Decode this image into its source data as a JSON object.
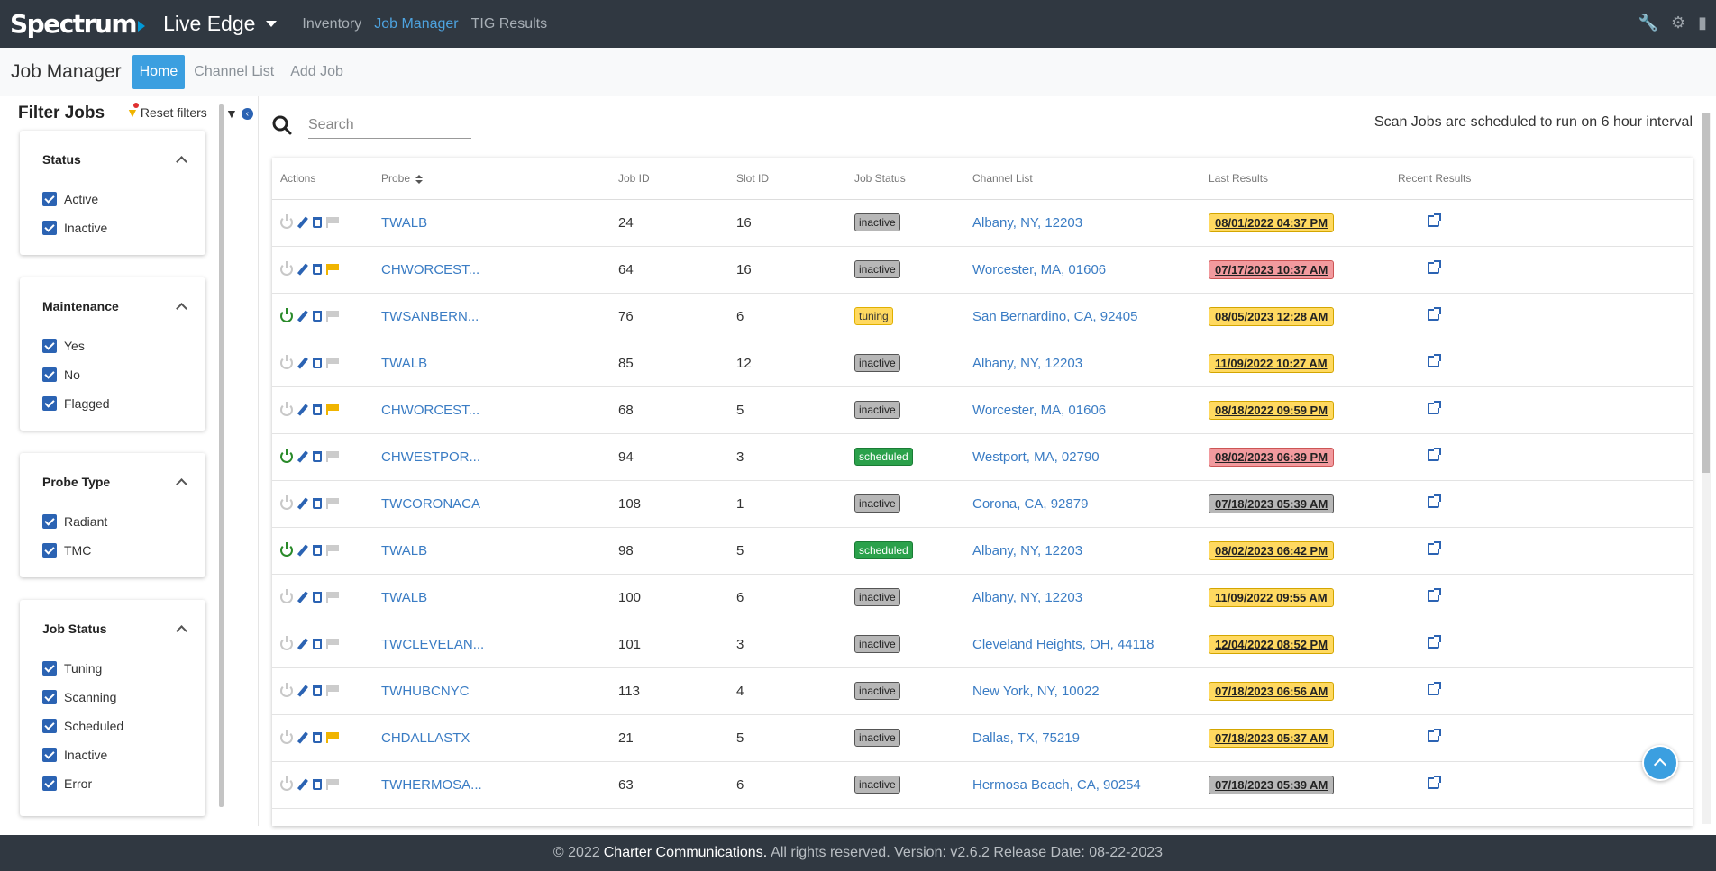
{
  "brand": "Spectrum",
  "app_switcher": "Live Edge",
  "nav": [
    {
      "label": "Inventory",
      "active": false
    },
    {
      "label": "Job Manager",
      "active": true
    },
    {
      "label": "TIG Results",
      "active": false
    }
  ],
  "top_icons": [
    "wrench-icon",
    "gear-icon",
    "book-icon"
  ],
  "page_title": "Job Manager",
  "subtabs": [
    {
      "label": "Home",
      "active": true
    },
    {
      "label": "Channel List",
      "active": false
    },
    {
      "label": "Add Job",
      "active": false
    }
  ],
  "filters": {
    "title": "Filter Jobs",
    "reset_label": "Reset filters",
    "groups": [
      {
        "title": "Status",
        "options": [
          "Active",
          "Inactive"
        ]
      },
      {
        "title": "Maintenance",
        "options": [
          "Yes",
          "No",
          "Flagged"
        ]
      },
      {
        "title": "Probe Type",
        "options": [
          "Radiant",
          "TMC"
        ]
      },
      {
        "title": "Job Status",
        "options": [
          "Tuning",
          "Scanning",
          "Scheduled",
          "Inactive",
          "Error"
        ]
      }
    ]
  },
  "search": {
    "placeholder": "Search",
    "value": ""
  },
  "scan_note": "Scan Jobs are scheduled to run on 6 hour interval",
  "table": {
    "headers": [
      "Actions",
      "Probe",
      "Job ID",
      "Slot ID",
      "Job Status",
      "Channel List",
      "Last Results",
      "Recent Results"
    ],
    "rows": [
      {
        "power": false,
        "flag": false,
        "probe": "TWALB",
        "job_id": "24",
        "slot_id": "16",
        "status": "inactive",
        "channel": "Albany, NY, 12203",
        "last": "08/01/2022 04:37 PM",
        "last_color": "y"
      },
      {
        "power": false,
        "flag": true,
        "probe": "CHWORCEST...",
        "job_id": "64",
        "slot_id": "16",
        "status": "inactive",
        "channel": "Worcester, MA, 01606",
        "last": "07/17/2023 10:37 AM",
        "last_color": "r"
      },
      {
        "power": true,
        "flag": false,
        "probe": "TWSANBERN...",
        "job_id": "76",
        "slot_id": "6",
        "status": "tuning",
        "channel": "San Bernardino, CA, 92405",
        "last": "08/05/2023 12:28 AM",
        "last_color": "y"
      },
      {
        "power": false,
        "flag": false,
        "probe": "TWALB",
        "job_id": "85",
        "slot_id": "12",
        "status": "inactive",
        "channel": "Albany, NY, 12203",
        "last": "11/09/2022 10:27 AM",
        "last_color": "y"
      },
      {
        "power": false,
        "flag": true,
        "probe": "CHWORCEST...",
        "job_id": "68",
        "slot_id": "5",
        "status": "inactive",
        "channel": "Worcester, MA, 01606",
        "last": "08/18/2022 09:59 PM",
        "last_color": "y"
      },
      {
        "power": true,
        "flag": false,
        "probe": "CHWESTPOR...",
        "job_id": "94",
        "slot_id": "3",
        "status": "scheduled",
        "channel": "Westport, MA, 02790",
        "last": "08/02/2023 06:39 PM",
        "last_color": "r"
      },
      {
        "power": false,
        "flag": false,
        "probe": "TWCORONACA",
        "job_id": "108",
        "slot_id": "1",
        "status": "inactive",
        "channel": "Corona, CA, 92879",
        "last": "07/18/2023 05:39 AM",
        "last_color": "g"
      },
      {
        "power": true,
        "flag": false,
        "probe": "TWALB",
        "job_id": "98",
        "slot_id": "5",
        "status": "scheduled",
        "channel": "Albany, NY, 12203",
        "last": "08/02/2023 06:42 PM",
        "last_color": "y"
      },
      {
        "power": false,
        "flag": false,
        "probe": "TWALB",
        "job_id": "100",
        "slot_id": "6",
        "status": "inactive",
        "channel": "Albany, NY, 12203",
        "last": "11/09/2022 09:55 AM",
        "last_color": "y"
      },
      {
        "power": false,
        "flag": false,
        "probe": "TWCLEVELAN...",
        "job_id": "101",
        "slot_id": "3",
        "status": "inactive",
        "channel": "Cleveland Heights, OH, 44118",
        "last": "12/04/2022 08:52 PM",
        "last_color": "y"
      },
      {
        "power": false,
        "flag": false,
        "probe": "TWHUBCNYC",
        "job_id": "113",
        "slot_id": "4",
        "status": "inactive",
        "channel": "New York, NY, 10022",
        "last": "07/18/2023 06:56 AM",
        "last_color": "y"
      },
      {
        "power": false,
        "flag": true,
        "probe": "CHDALLASTX",
        "job_id": "21",
        "slot_id": "5",
        "status": "inactive",
        "channel": "Dallas, TX, 75219",
        "last": "07/18/2023 05:37 AM",
        "last_color": "y"
      },
      {
        "power": false,
        "flag": false,
        "probe": "TWHERMOSA...",
        "job_id": "63",
        "slot_id": "6",
        "status": "inactive",
        "channel": "Hermosa Beach, CA, 90254",
        "last": "07/18/2023 05:39 AM",
        "last_color": "g"
      }
    ]
  },
  "footer": {
    "copyright": "© 2022",
    "company": "Charter Communications.",
    "rest": "All rights reserved. Version: v2.6.2 Release Date: 08-22-2023"
  }
}
